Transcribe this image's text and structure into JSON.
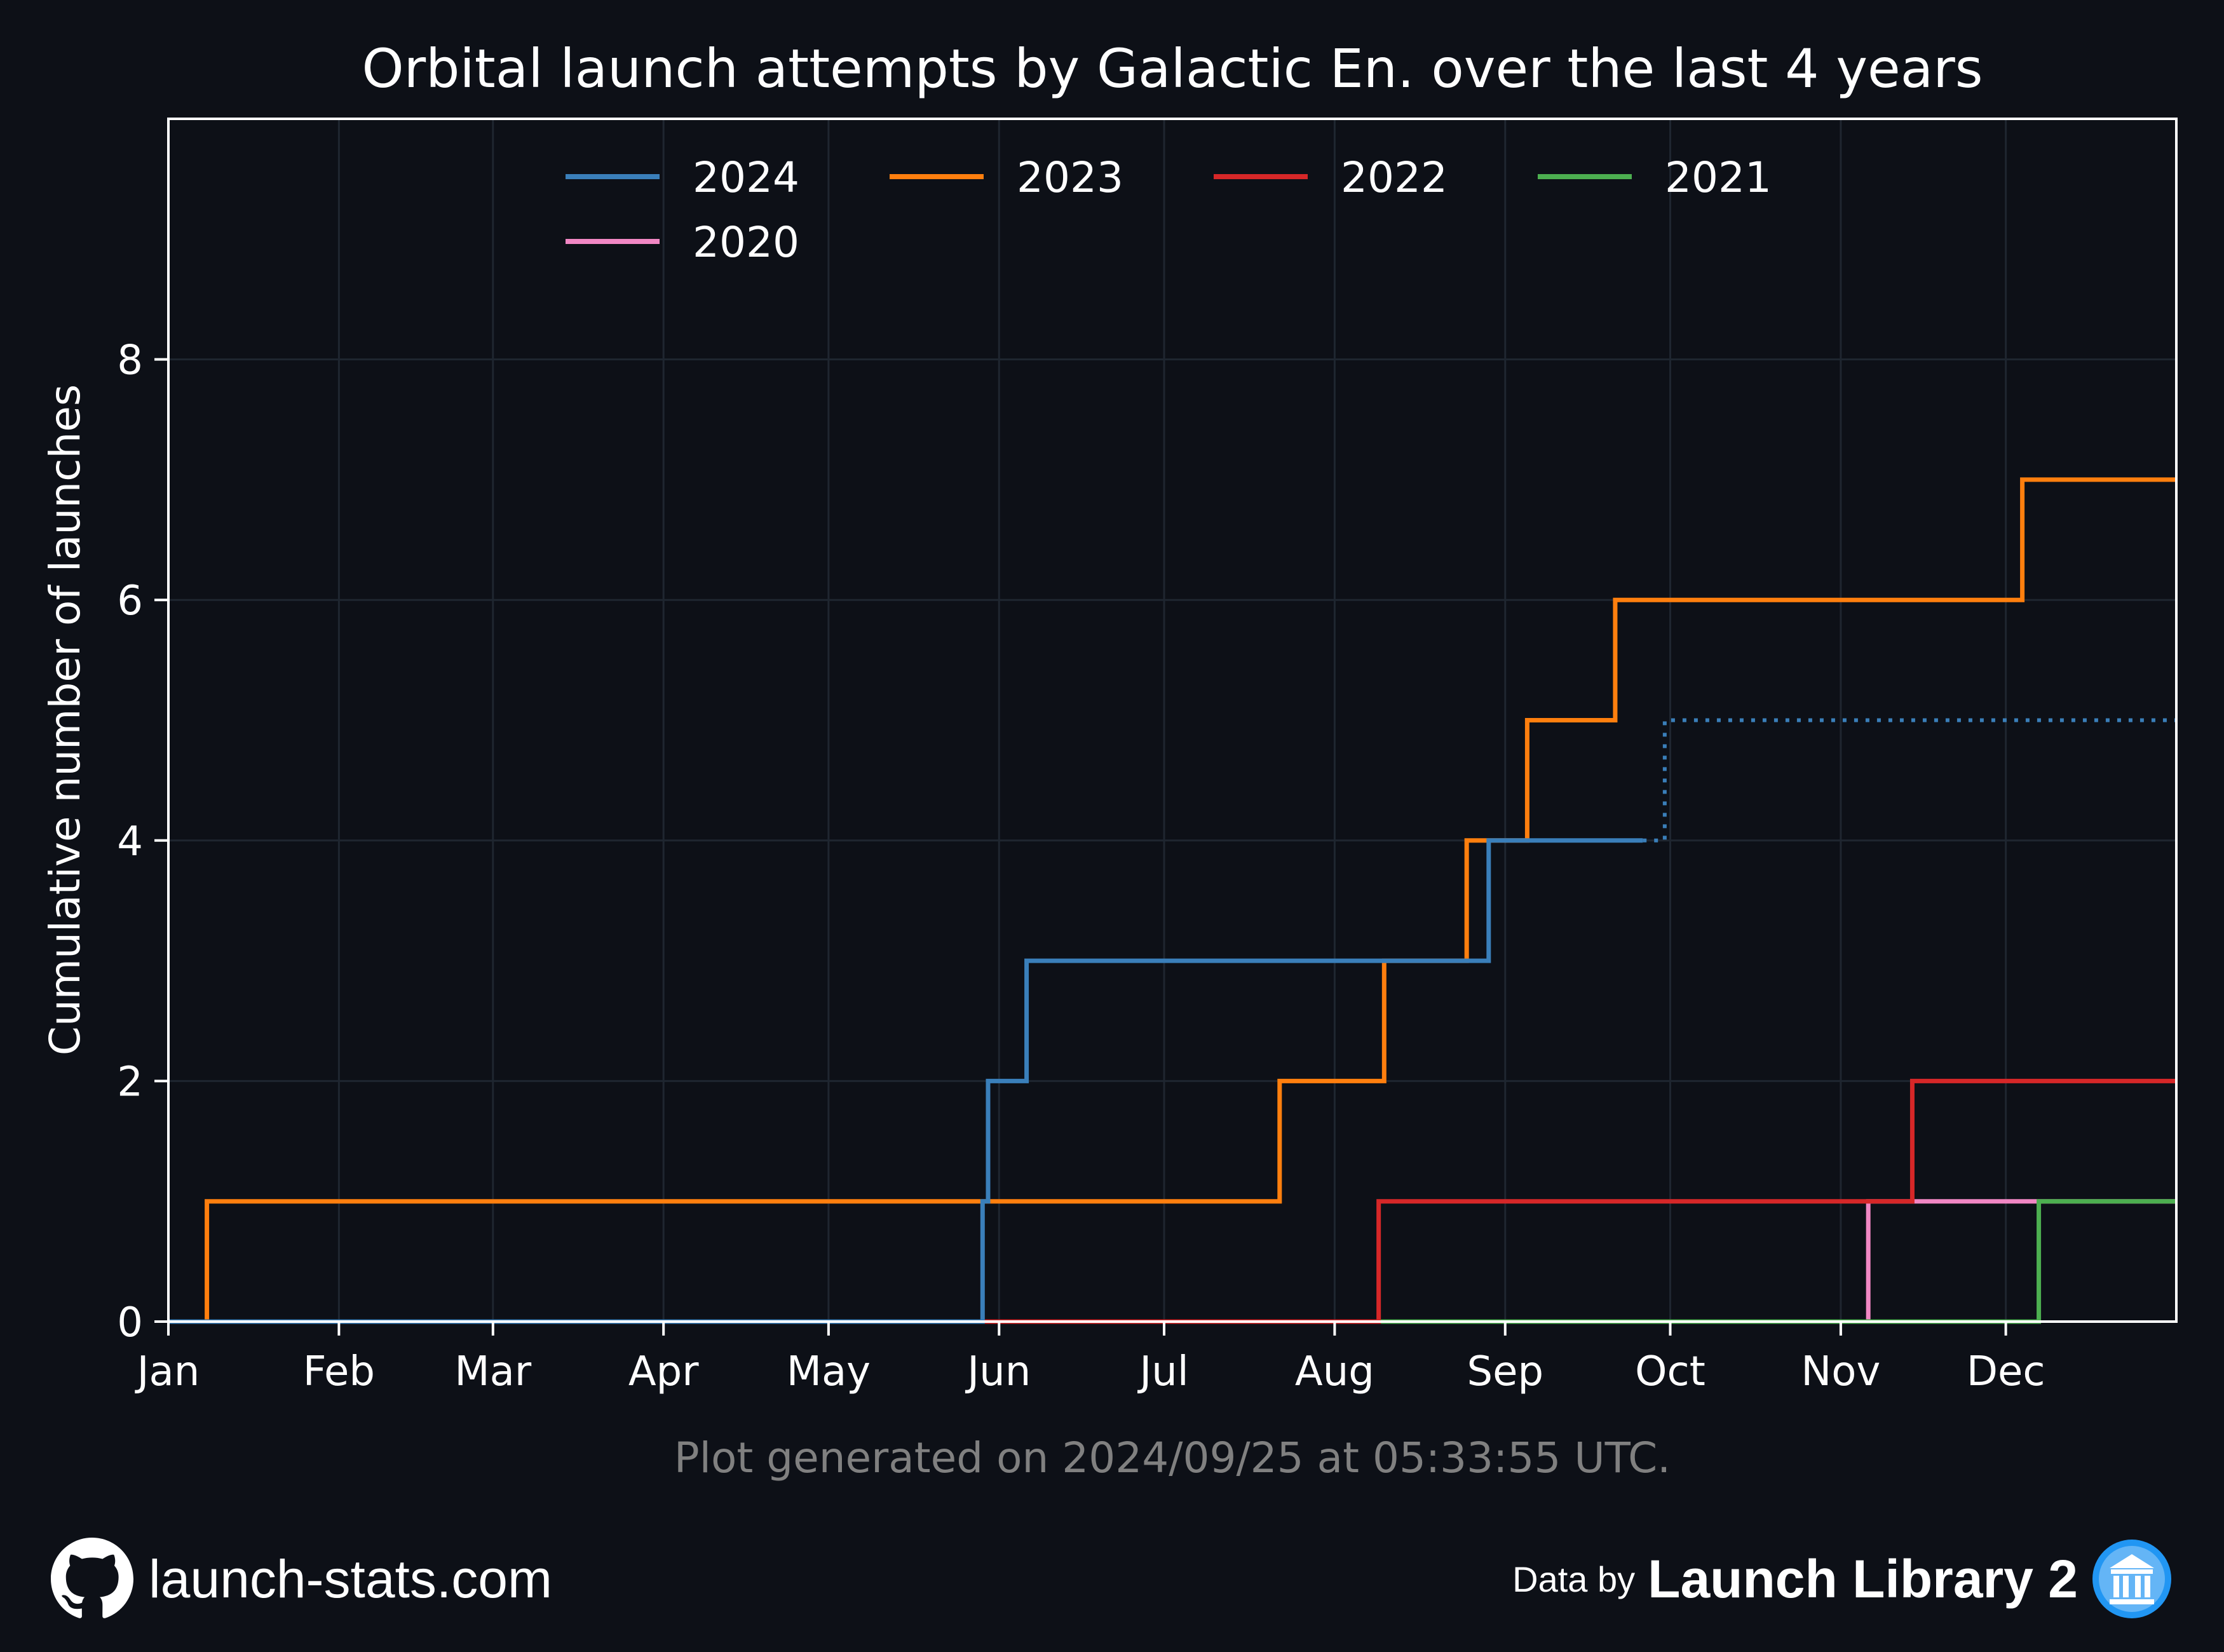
{
  "chart_data": {
    "type": "line",
    "step": true,
    "title": "Orbital launch attempts by Galactic En. over the last 4 years",
    "xlabel": "",
    "ylabel": "Cumulative number of launches",
    "xlim": [
      0,
      365
    ],
    "ylim": [
      0,
      10
    ],
    "month_starts": [
      0,
      31,
      59,
      90,
      120,
      151,
      181,
      212,
      243,
      273,
      304,
      334
    ],
    "month_labels": [
      "Jan",
      "Feb",
      "Mar",
      "Apr",
      "May",
      "Jun",
      "Jul",
      "Aug",
      "Sep",
      "Oct",
      "Nov",
      "Dec"
    ],
    "yticks": [
      0,
      2,
      4,
      6,
      8
    ],
    "grid": true,
    "legend_position": "top",
    "series": [
      {
        "name": "2024",
        "color": "#3a7fba",
        "x": [
          0,
          148,
          149,
          156,
          240,
          268
        ],
        "y": [
          0,
          1,
          2,
          3,
          4,
          4
        ],
        "projection": {
          "x": [
            268,
            272,
            365
          ],
          "y": [
            4,
            5,
            5
          ]
        }
      },
      {
        "name": "2023",
        "color": "#ff7f0e",
        "x": [
          0,
          7,
          202,
          221,
          236,
          247,
          263,
          337,
          365
        ],
        "y": [
          0,
          1,
          2,
          3,
          4,
          5,
          6,
          7,
          7
        ]
      },
      {
        "name": "2022",
        "color": "#d62728",
        "x": [
          0,
          220,
          317,
          365
        ],
        "y": [
          0,
          1,
          2,
          2
        ]
      },
      {
        "name": "2021",
        "color": "#4caf50",
        "x": [
          0,
          340,
          365
        ],
        "y": [
          0,
          1,
          1
        ]
      },
      {
        "name": "2020",
        "color": "#f187c4",
        "x": [
          0,
          309,
          365
        ],
        "y": [
          0,
          1,
          1
        ]
      }
    ]
  },
  "footer": {
    "generated_note": "Plot generated on 2024/09/25 at 05:33:55 UTC.",
    "site": "launch-stats.com",
    "data_by": "Data by",
    "source": "Launch Library 2"
  },
  "colors": {
    "background": "#0d1017",
    "axes": "#ffffff",
    "grid": "#1f2630",
    "note": "#808080",
    "ll2_badge": "#2196f3"
  }
}
